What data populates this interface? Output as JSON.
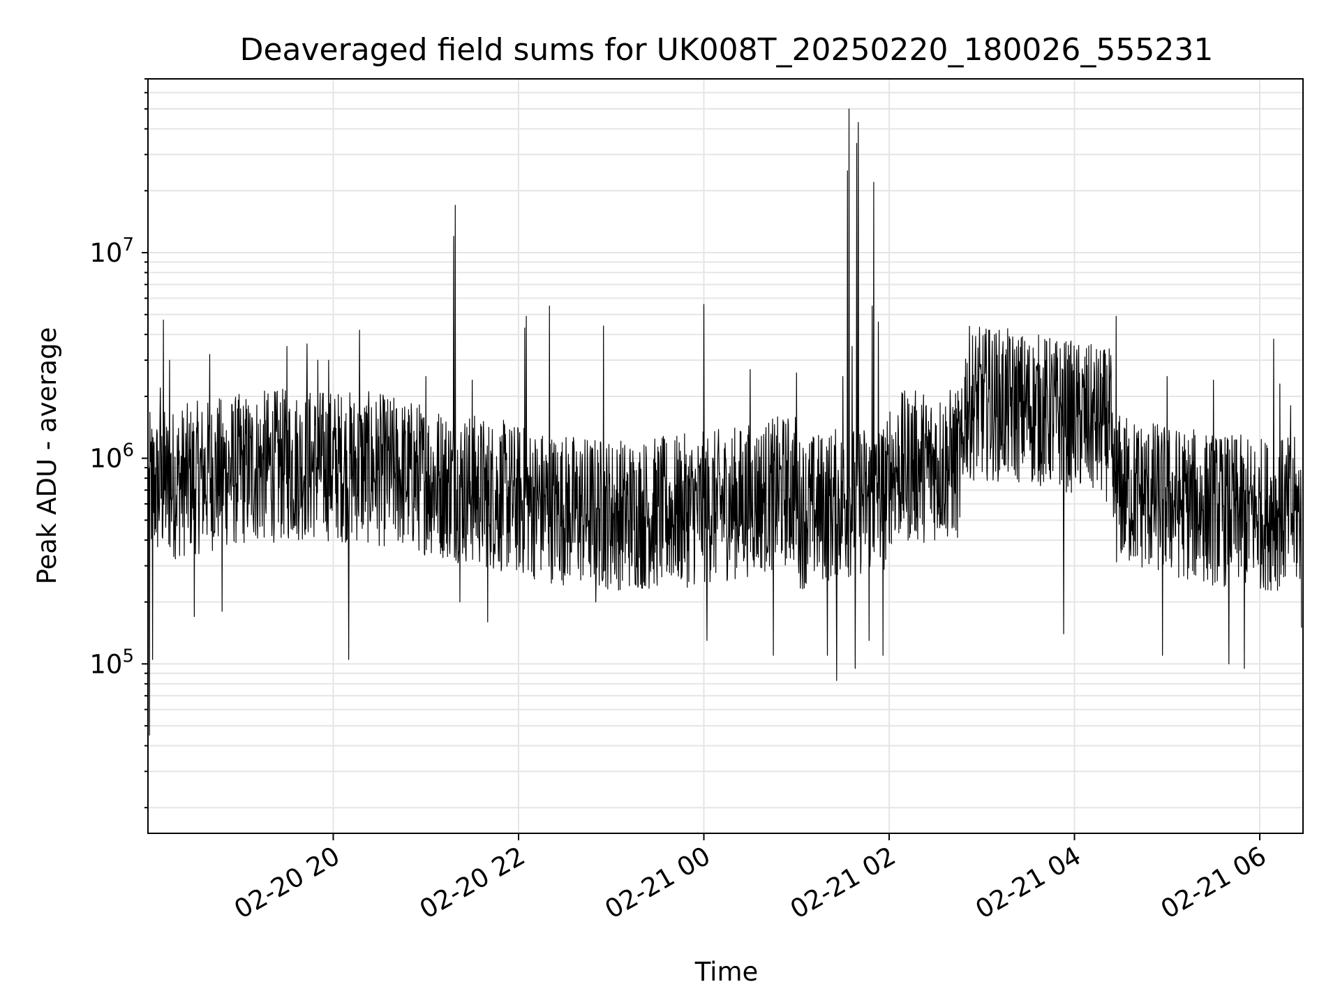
{
  "chart_data": {
    "type": "line",
    "title": "Deaveraged field sums for UK008T_20250220_180026_555231",
    "xlabel": "Time",
    "ylabel": "Peak ADU - average",
    "y_scale": "log",
    "ylim": [
      15000,
      70000000
    ],
    "xlim": [
      "2025-02-20 18:00",
      "2025-02-21 06:28"
    ],
    "x_ticks": [
      {
        "value": "2025-02-20 20:00",
        "label": "02-20 20"
      },
      {
        "value": "2025-02-20 22:00",
        "label": "02-20 22"
      },
      {
        "value": "2025-02-21 00:00",
        "label": "02-21 00"
      },
      {
        "value": "2025-02-21 02:00",
        "label": "02-21 02"
      },
      {
        "value": "2025-02-21 04:00",
        "label": "02-21 04"
      },
      {
        "value": "2025-02-21 06:00",
        "label": "02-21 06"
      }
    ],
    "y_ticks": [
      {
        "value": 100000,
        "base": "10",
        "exponent": "5"
      },
      {
        "value": 1000000,
        "base": "10",
        "exponent": "6"
      },
      {
        "value": 10000000,
        "base": "10",
        "exponent": "7"
      }
    ],
    "grid": true,
    "line_color": "#000000",
    "grid_color": "#e5e5e5",
    "series": [
      {
        "points": [
          [
            "2025-02-20 18:00",
            600000
          ],
          [
            "2025-02-20 18:01",
            45000
          ],
          [
            "2025-02-20 18:02",
            1200000
          ],
          [
            "2025-02-20 18:03",
            105000
          ],
          [
            "2025-02-20 18:05",
            900000
          ],
          [
            "2025-02-20 18:08",
            2200000
          ],
          [
            "2025-02-20 18:10",
            4700000
          ],
          [
            "2025-02-20 18:14",
            3000000
          ],
          [
            "2025-02-20 18:30",
            170000
          ],
          [
            "2025-02-20 18:40",
            3200000
          ],
          [
            "2025-02-20 18:48",
            180000
          ],
          [
            "2025-02-20 19:30",
            3500000
          ],
          [
            "2025-02-20 19:43",
            3600000
          ],
          [
            "2025-02-20 19:50",
            3000000
          ],
          [
            "2025-02-20 19:57",
            3000000
          ],
          [
            "2025-02-20 20:10",
            105000
          ],
          [
            "2025-02-20 20:17",
            4200000
          ],
          [
            "2025-02-20 21:00",
            2500000
          ],
          [
            "2025-02-20 21:18",
            12000000
          ],
          [
            "2025-02-20 21:19",
            17000000
          ],
          [
            "2025-02-20 21:22",
            200000
          ],
          [
            "2025-02-20 21:30",
            2400000
          ],
          [
            "2025-02-20 21:40",
            160000
          ],
          [
            "2025-02-20 22:04",
            4300000
          ],
          [
            "2025-02-20 22:05",
            4900000
          ],
          [
            "2025-02-20 22:20",
            5500000
          ],
          [
            "2025-02-20 22:50",
            200000
          ],
          [
            "2025-02-20 22:55",
            4400000
          ],
          [
            "2025-02-21 00:00",
            5600000
          ],
          [
            "2025-02-21 00:02",
            130000
          ],
          [
            "2025-02-21 00:30",
            2700000
          ],
          [
            "2025-02-21 00:45",
            110000
          ],
          [
            "2025-02-21 01:00",
            2600000
          ],
          [
            "2025-02-21 01:20",
            110000
          ],
          [
            "2025-02-21 01:26",
            83000
          ],
          [
            "2025-02-21 01:30",
            2500000
          ],
          [
            "2025-02-21 01:33",
            25000000
          ],
          [
            "2025-02-21 01:34",
            50000000
          ],
          [
            "2025-02-21 01:36",
            3500000
          ],
          [
            "2025-02-21 01:38",
            95000
          ],
          [
            "2025-02-21 01:39",
            34000000
          ],
          [
            "2025-02-21 01:40",
            43000000
          ],
          [
            "2025-02-21 01:47",
            130000
          ],
          [
            "2025-02-21 01:49",
            5500000
          ],
          [
            "2025-02-21 01:50",
            22000000
          ],
          [
            "2025-02-21 01:53",
            4600000
          ],
          [
            "2025-02-21 01:56",
            110000
          ],
          [
            "2025-02-21 02:15",
            1800000
          ],
          [
            "2025-02-21 02:45",
            1900000
          ],
          [
            "2025-02-21 03:05",
            4200000
          ],
          [
            "2025-02-21 03:30",
            3100000
          ],
          [
            "2025-02-21 03:53",
            140000
          ],
          [
            "2025-02-21 04:27",
            4900000
          ],
          [
            "2025-02-21 04:57",
            110000
          ],
          [
            "2025-02-21 05:00",
            2500000
          ],
          [
            "2025-02-21 05:30",
            2400000
          ],
          [
            "2025-02-21 05:40",
            100000
          ],
          [
            "2025-02-21 05:50",
            95000
          ],
          [
            "2025-02-21 06:09",
            3800000
          ],
          [
            "2025-02-21 06:13",
            2300000
          ],
          [
            "2025-02-21 06:20",
            1800000
          ],
          [
            "2025-02-21 06:27",
            150000
          ]
        ]
      }
    ]
  }
}
